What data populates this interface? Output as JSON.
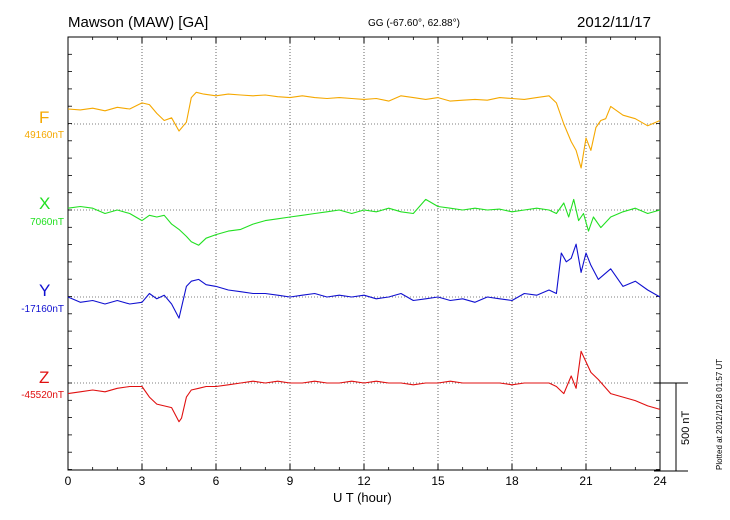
{
  "header": {
    "station": "Mawson (MAW)  [GA]",
    "coords": "GG (-67.60°,  62.88°)",
    "date": "2012/11/17"
  },
  "plotted_note": "Plotted at 2012/12/18 01:57 UT",
  "scale_label": "500 nT",
  "chart_data": {
    "type": "line",
    "xlabel": "U T (hour)",
    "xlim": [
      0,
      24
    ],
    "xticks": [
      "0",
      "3",
      "6",
      "9",
      "12",
      "15",
      "18",
      "21",
      "24"
    ],
    "scale_bar_nT": 500,
    "grid": "dotted",
    "series": [
      {
        "name": "F",
        "baseline": "49160nT",
        "color": "#f5a800",
        "x": [
          0,
          0.5,
          1,
          1.5,
          2,
          2.5,
          3,
          3.3,
          3.6,
          3.9,
          4.2,
          4.5,
          4.8,
          5,
          5.2,
          5.5,
          6,
          6.5,
          7,
          7.5,
          8,
          8.5,
          9,
          9.5,
          10,
          10.5,
          11,
          11.5,
          12,
          12.5,
          13,
          13.5,
          14,
          14.5,
          15,
          15.5,
          16,
          16.5,
          17,
          17.5,
          18,
          18.5,
          19,
          19.5,
          19.8,
          20.1,
          20.4,
          20.6,
          20.8,
          21,
          21.2,
          21.4,
          21.6,
          21.8,
          22,
          22.5,
          23,
          23.5,
          24
        ],
        "y": [
          85,
          80,
          90,
          75,
          95,
          85,
          120,
          110,
          60,
          20,
          35,
          -40,
          10,
          150,
          180,
          170,
          160,
          170,
          165,
          160,
          165,
          155,
          150,
          160,
          150,
          145,
          150,
          145,
          140,
          145,
          130,
          160,
          150,
          140,
          150,
          130,
          135,
          140,
          135,
          150,
          145,
          140,
          150,
          160,
          120,
          0,
          -100,
          -150,
          -250,
          -80,
          -150,
          -20,
          20,
          30,
          100,
          50,
          30,
          -10,
          20
        ]
      },
      {
        "name": "X",
        "baseline": "7060nT",
        "color": "#22e022",
        "x": [
          0,
          0.5,
          1,
          1.5,
          2,
          2.5,
          3,
          3.3,
          3.6,
          3.9,
          4.2,
          4.5,
          4.8,
          5,
          5.3,
          5.6,
          6,
          6.5,
          7,
          7.5,
          8,
          8.5,
          9,
          9.5,
          10,
          10.5,
          11,
          11.5,
          12,
          12.5,
          13,
          13.5,
          14,
          14.5,
          15,
          15.5,
          16,
          16.5,
          17,
          17.5,
          18,
          18.5,
          19,
          19.5,
          19.8,
          20.1,
          20.3,
          20.5,
          20.7,
          20.9,
          21.1,
          21.3,
          21.6,
          22,
          22.5,
          23,
          23.5,
          24
        ],
        "y": [
          10,
          20,
          10,
          -20,
          0,
          -20,
          -60,
          -30,
          -40,
          -30,
          -80,
          -110,
          -150,
          -180,
          -200,
          -160,
          -140,
          -120,
          -110,
          -80,
          -60,
          -50,
          -40,
          -30,
          -20,
          -10,
          0,
          -20,
          0,
          -10,
          10,
          -10,
          -20,
          60,
          20,
          10,
          0,
          10,
          0,
          5,
          -10,
          0,
          10,
          0,
          -20,
          40,
          -40,
          60,
          -60,
          -20,
          -120,
          -40,
          -100,
          -40,
          -10,
          10,
          -20,
          0
        ]
      },
      {
        "name": "Y",
        "baseline": "-17160nT",
        "color": "#1010d0",
        "x": [
          0,
          0.5,
          1,
          1.5,
          2,
          2.5,
          3,
          3.3,
          3.6,
          3.9,
          4.2,
          4.5,
          4.8,
          5,
          5.3,
          5.6,
          6,
          6.5,
          7,
          7.5,
          8,
          8.5,
          9,
          9.5,
          10,
          10.5,
          11,
          11.5,
          12,
          12.5,
          13,
          13.5,
          14,
          14.5,
          15,
          15.5,
          16,
          16.5,
          17,
          17.5,
          18,
          18.5,
          19,
          19.5,
          19.8,
          20,
          20.2,
          20.4,
          20.6,
          20.8,
          21,
          21.2,
          21.5,
          22,
          22.5,
          23,
          23.5,
          24
        ],
        "y": [
          0,
          -30,
          -20,
          -40,
          -20,
          -40,
          -30,
          20,
          -10,
          10,
          -40,
          -120,
          60,
          90,
          100,
          70,
          60,
          40,
          30,
          20,
          20,
          10,
          0,
          10,
          20,
          0,
          10,
          0,
          10,
          -10,
          0,
          20,
          -20,
          -10,
          0,
          -20,
          -10,
          -30,
          0,
          -10,
          -20,
          20,
          10,
          40,
          20,
          250,
          200,
          220,
          300,
          140,
          250,
          180,
          100,
          160,
          60,
          90,
          40,
          0
        ],
        "baseline_offset": 0
      },
      {
        "name": "Z",
        "baseline": "-45520nT",
        "color": "#e01010",
        "x": [
          0,
          0.5,
          1,
          1.5,
          2,
          2.5,
          3,
          3.3,
          3.6,
          3.9,
          4.2,
          4.5,
          4.6,
          4.8,
          5,
          5.3,
          5.6,
          6,
          6.5,
          7,
          7.5,
          8,
          8.5,
          9,
          9.5,
          10,
          10.5,
          11,
          11.5,
          12,
          12.5,
          13,
          13.5,
          14,
          14.5,
          15,
          15.5,
          16,
          16.5,
          17,
          17.5,
          18,
          18.5,
          19,
          19.5,
          19.8,
          20.1,
          20.4,
          20.6,
          20.8,
          21,
          21.2,
          21.5,
          22,
          22.5,
          23,
          23.5,
          24
        ],
        "y": [
          -60,
          -50,
          -40,
          -50,
          -30,
          -20,
          -20,
          -80,
          -120,
          -130,
          -140,
          -220,
          -200,
          -80,
          -40,
          -30,
          -20,
          -20,
          -10,
          0,
          10,
          0,
          10,
          0,
          0,
          10,
          0,
          0,
          10,
          0,
          10,
          0,
          0,
          -10,
          0,
          0,
          10,
          0,
          0,
          0,
          0,
          -10,
          0,
          0,
          0,
          -20,
          -60,
          40,
          -30,
          180,
          120,
          60,
          20,
          -60,
          -80,
          -100,
          -130,
          -150
        ]
      }
    ]
  }
}
